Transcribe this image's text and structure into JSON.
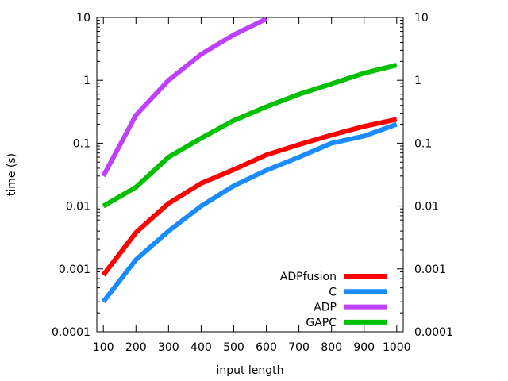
{
  "chart_data": {
    "type": "line",
    "title": "",
    "xlabel": "input length",
    "ylabel": "time (s)",
    "xlim": [
      80,
      1020
    ],
    "ylim": [
      0.0001,
      10
    ],
    "x_scale": "linear",
    "y_scale": "log",
    "x_ticks": [
      100,
      200,
      300,
      400,
      500,
      600,
      700,
      800,
      900,
      1000
    ],
    "y_ticks": [
      "0.0001",
      "0.001",
      "0.01",
      "0.1",
      "1",
      "10"
    ],
    "y_tick_values": [
      0.0001,
      0.001,
      0.01,
      0.1,
      1,
      10
    ],
    "right_axis_mirrored": true,
    "grid": false,
    "legend_position": "bottom-right",
    "series": [
      {
        "name": "ADPfusion",
        "color": "#ff0000",
        "x": [
          100,
          200,
          300,
          400,
          500,
          600,
          700,
          800,
          900,
          1000
        ],
        "y": [
          0.0008,
          0.0038,
          0.011,
          0.023,
          0.038,
          0.065,
          0.095,
          0.135,
          0.185,
          0.24
        ]
      },
      {
        "name": "C",
        "color": "#1a8cff",
        "x": [
          100,
          200,
          300,
          400,
          500,
          600,
          700,
          800,
          900,
          1000
        ],
        "y": [
          0.0003,
          0.0014,
          0.004,
          0.01,
          0.021,
          0.037,
          0.06,
          0.1,
          0.13,
          0.2
        ]
      },
      {
        "name": "ADP",
        "color": "#bf40ff",
        "x": [
          100,
          200,
          300,
          400,
          500,
          600
        ],
        "y": [
          0.03,
          0.28,
          1.0,
          2.6,
          5.3,
          9.5
        ]
      },
      {
        "name": "GAPC",
        "color": "#00c000",
        "x": [
          100,
          200,
          300,
          400,
          500,
          600,
          700,
          800,
          900,
          1000
        ],
        "y": [
          0.01,
          0.02,
          0.06,
          0.12,
          0.23,
          0.38,
          0.6,
          0.88,
          1.3,
          1.75
        ]
      }
    ]
  }
}
